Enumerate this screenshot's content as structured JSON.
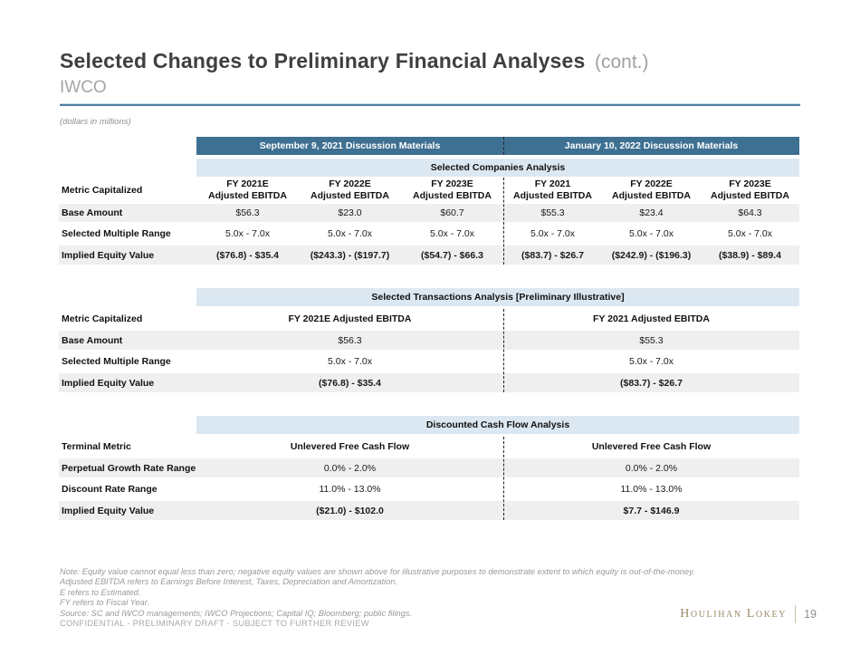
{
  "page": {
    "title": "Selected Changes to Preliminary Financial Analyses",
    "title_suffix": "(cont.)",
    "subtitle": "IWCO",
    "units_note": "(dollars in millions)",
    "confidential": "CONFIDENTIAL - PRELIMINARY DRAFT - SUBJECT TO FURTHER REVIEW",
    "logo_text": "Houlihan Lokey",
    "page_number": "19"
  },
  "colors": {
    "band_dark": "#3e7092",
    "band_light": "#dce8f1",
    "row_stripe": "#efefef",
    "rule_blue": "#4d7fa3",
    "logo_gold": "#9b8a67"
  },
  "table1": {
    "period_headers": [
      "September 9, 2021 Discussion Materials",
      "January 10, 2022 Discussion Materials"
    ],
    "section_title": "Selected Companies Analysis",
    "row_label_header": "Metric Capitalized",
    "col_headers": [
      {
        "line1": "FY 2021E",
        "line2": "Adjusted EBITDA"
      },
      {
        "line1": "FY 2022E",
        "line2": "Adjusted EBITDA"
      },
      {
        "line1": "FY 2023E",
        "line2": "Adjusted EBITDA"
      },
      {
        "line1": "FY 2021",
        "line2": "Adjusted EBITDA"
      },
      {
        "line1": "FY 2022E",
        "line2": "Adjusted EBITDA"
      },
      {
        "line1": "FY 2023E",
        "line2": "Adjusted EBITDA"
      }
    ],
    "rows": [
      {
        "label": "Base Amount",
        "cells": [
          "$56.3",
          "$23.0",
          "$60.7",
          "$55.3",
          "$23.4",
          "$64.3"
        ]
      },
      {
        "label": "Selected Multiple Range",
        "cells": [
          "5.0x - 7.0x",
          "5.0x - 7.0x",
          "5.0x - 7.0x",
          "5.0x - 7.0x",
          "5.0x - 7.0x",
          "5.0x - 7.0x"
        ]
      },
      {
        "label": "Implied Equity Value",
        "cells": [
          "($76.8) - $35.4",
          "($243.3) - ($197.7)",
          "($54.7) - $66.3",
          "($83.7) - $26.7",
          "($242.9) - ($196.3)",
          "($38.9) - $89.4"
        ]
      }
    ]
  },
  "table2": {
    "section_title": "Selected Transactions Analysis [Preliminary Illustrative]",
    "row_label_header": "Metric Capitalized",
    "col_headers": [
      "FY 2021E Adjusted EBITDA",
      "FY 2021 Adjusted EBITDA"
    ],
    "rows": [
      {
        "label": "Base Amount",
        "cells": [
          "$56.3",
          "$55.3"
        ]
      },
      {
        "label": "Selected Multiple Range",
        "cells": [
          "5.0x - 7.0x",
          "5.0x - 7.0x"
        ]
      },
      {
        "label": "Implied Equity Value",
        "cells": [
          "($76.8) - $35.4",
          "($83.7) - $26.7"
        ]
      }
    ]
  },
  "table3": {
    "section_title": "Discounted Cash Flow Analysis",
    "row_label_header": "Terminal Metric",
    "col_headers": [
      "Unlevered Free Cash Flow",
      "Unlevered Free Cash Flow"
    ],
    "rows": [
      {
        "label": "Perpetual Growth Rate Range",
        "cells": [
          "0.0% - 2.0%",
          "0.0% - 2.0%"
        ]
      },
      {
        "label": "Discount Rate Range",
        "cells": [
          "11.0% - 13.0%",
          "11.0% - 13.0%"
        ]
      },
      {
        "label": "Implied Equity Value",
        "cells": [
          "($21.0) - $102.0",
          "$7.7 - $146.9"
        ]
      }
    ]
  },
  "footnotes": {
    "lines": [
      "Note: Equity value cannot equal less than zero; negative equity values are shown above for illustrative purposes to demonstrate extent to which equity is out-of-the-money.",
      "Adjusted EBITDA refers to Earnings Before Interest, Taxes, Depreciation and Amortization.",
      "E refers to Estimated.",
      "FY refers to Fiscal Year.",
      "Source: SC and IWCO managements; IWCO Projections; Capital IQ; Bloomberg; public filings."
    ]
  }
}
